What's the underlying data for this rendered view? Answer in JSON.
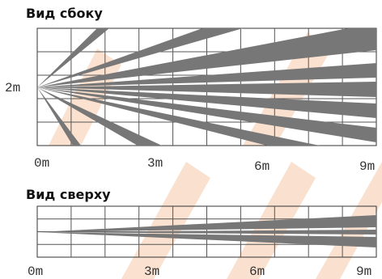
{
  "side_view": {
    "title": "Вид сбоку",
    "height_label": "2m",
    "distance_labels": [
      "0m",
      "3m",
      "6m",
      "9m"
    ]
  },
  "top_view": {
    "title": "Вид сверху",
    "distance_labels": [
      "0m",
      "3m",
      "6m",
      "9m"
    ]
  }
}
